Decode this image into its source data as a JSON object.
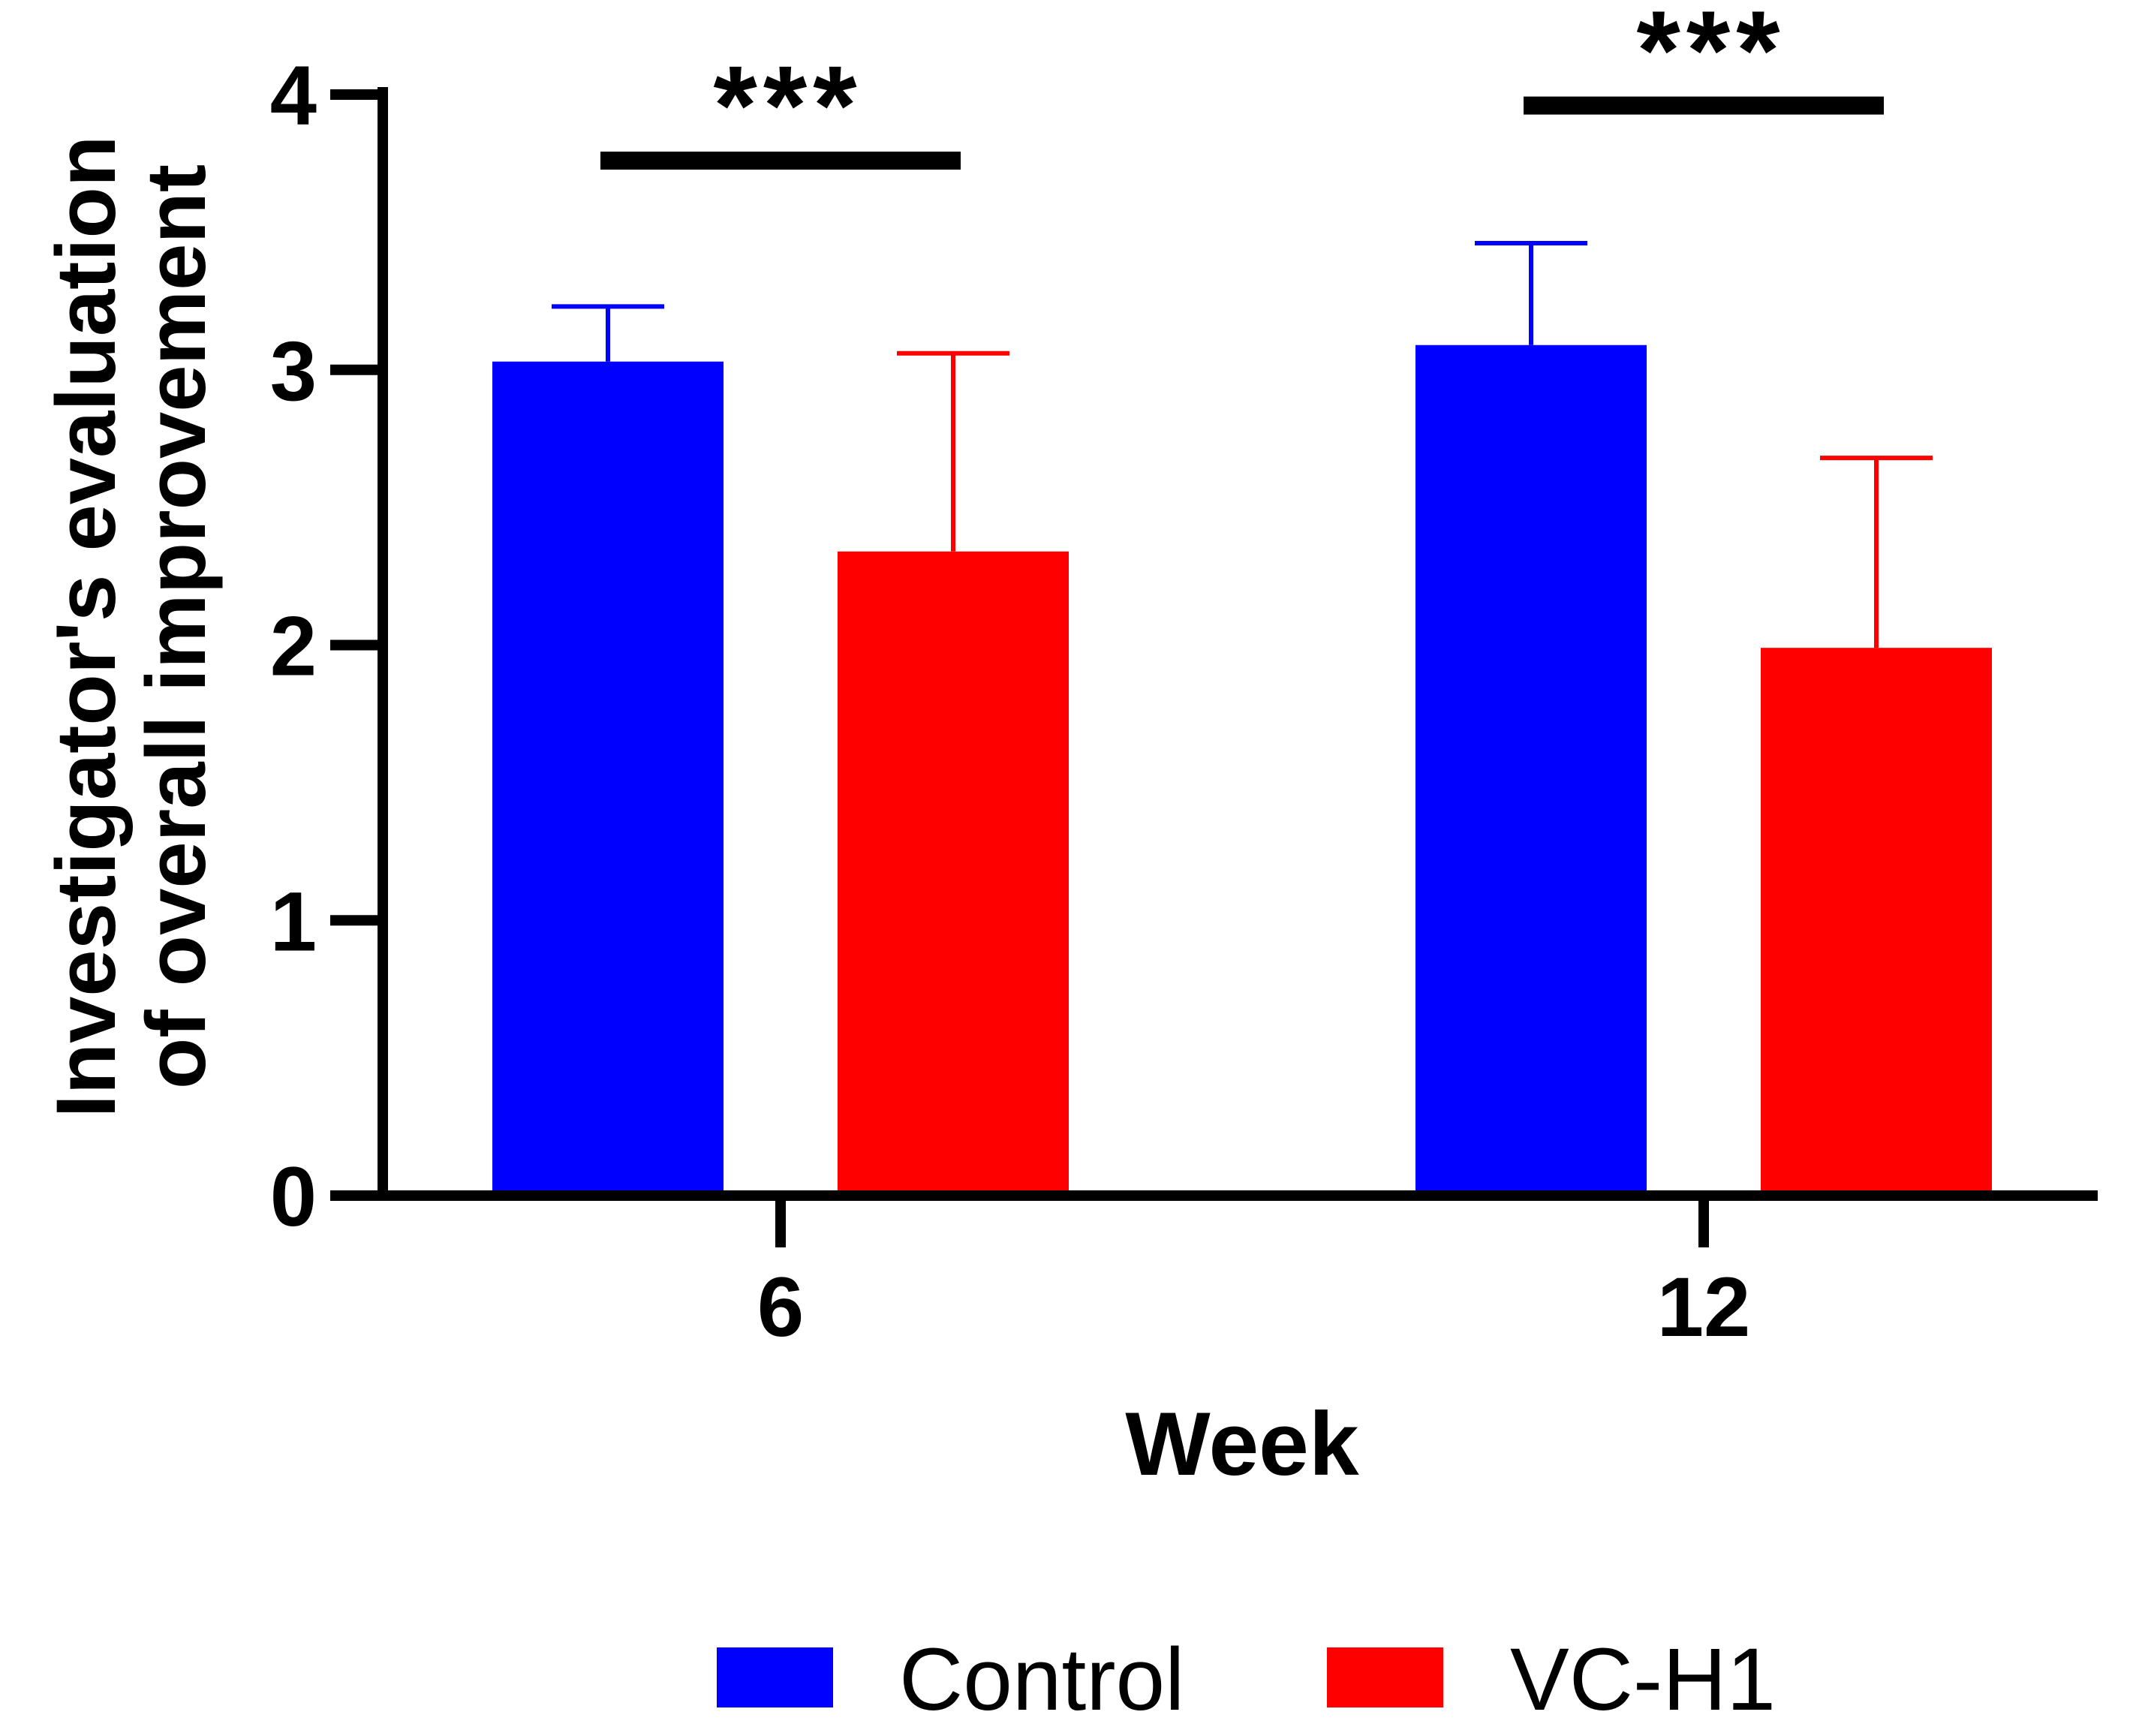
{
  "chart_data": {
    "type": "bar",
    "title": "",
    "xlabel": "Week",
    "ylabel_lines": [
      "Investigator's evaluation",
      "of overall improvement"
    ],
    "categories": [
      "6",
      "12"
    ],
    "ylim": [
      0,
      4
    ],
    "yticks": [
      0,
      1,
      2,
      3,
      4
    ],
    "series": [
      {
        "name": "Control",
        "color": "#0000ff",
        "values": [
          3.03,
          3.09
        ],
        "errors": [
          0.2,
          0.37
        ]
      },
      {
        "name": "VC-H1",
        "color": "#ff0000",
        "values": [
          2.34,
          1.99
        ],
        "errors": [
          0.72,
          0.69
        ]
      }
    ],
    "significance": [
      {
        "category": "6",
        "label": "***",
        "y": 3.76
      },
      {
        "category": "12",
        "label": "***",
        "y": 3.96
      }
    ],
    "legend": {
      "placement": "bottom-center",
      "entries": [
        "Control",
        "VC-H1"
      ]
    }
  }
}
